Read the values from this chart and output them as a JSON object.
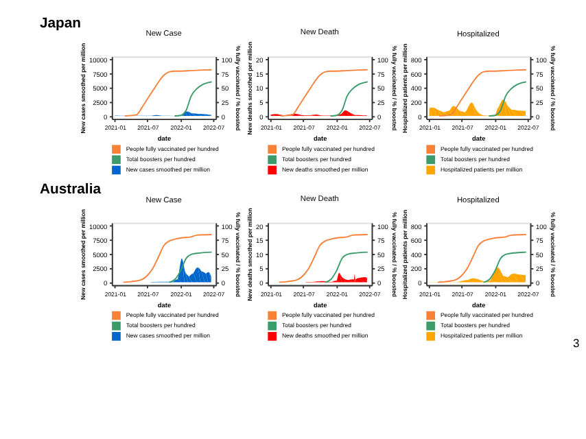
{
  "chart_data": [
    {
      "type": "area",
      "title": "New Case",
      "xlabel": "date",
      "ylabel": "New cases smoothed per million",
      "y2label": "% fully vaccinated / % boosted",
      "annotations": [
        "Japan"
      ],
      "legend": "bottom",
      "xlim": [
        "2020-12-15",
        "2022-07-15"
      ],
      "xticks": [
        "2021-01",
        "2021-07",
        "2022-01",
        "2022-07"
      ],
      "ylim": [
        -500,
        10500
      ],
      "yticks": [
        0,
        2500,
        5000,
        7500,
        10000
      ],
      "y2lim": [
        -5,
        105
      ],
      "y2ticks": [
        0,
        25,
        50,
        75,
        100
      ],
      "series": [
        {
          "name": "People fully vaccinated per hundred",
          "color": "#f8813a",
          "type": "line",
          "axis": "y2",
          "x": [
            "2021-03-01",
            "2021-05-01",
            "2021-06-01",
            "2021-07-01",
            "2021-08-01",
            "2021-09-01",
            "2021-10-01",
            "2021-11-01",
            "2021-12-01",
            "2022-01-01",
            "2022-03-01",
            "2022-05-01",
            "2022-06-20"
          ],
          "values": [
            0,
            2,
            15,
            30,
            45,
            60,
            72,
            78,
            79,
            79,
            80,
            81,
            81.5
          ]
        },
        {
          "name": "Total boosters per hundred",
          "color": "#3a9c6b",
          "type": "line",
          "axis": "y2",
          "x": [
            "2021-12-01",
            "2022-01-01",
            "2022-02-01",
            "2022-03-01",
            "2022-04-01",
            "2022-05-01",
            "2022-06-20"
          ],
          "values": [
            0,
            1,
            10,
            35,
            48,
            55,
            60
          ]
        },
        {
          "name": "New cases smoothed per million",
          "color": "#0066cc",
          "axis": "y",
          "x": [
            "2021-01-01",
            "2021-02-01",
            "2021-04-01",
            "2021-07-15",
            "2021-08-20",
            "2021-10-01",
            "2021-12-01",
            "2022-01-10",
            "2022-01-25",
            "2022-02-10",
            "2022-03-01",
            "2022-04-01",
            "2022-05-01",
            "2022-06-01",
            "2022-06-20"
          ],
          "values": [
            50,
            30,
            30,
            40,
            170,
            20,
            5,
            100,
            700,
            800,
            500,
            400,
            350,
            250,
            200
          ]
        }
      ]
    },
    {
      "type": "area",
      "title": "New Death",
      "xlabel": "date",
      "ylabel": "New deaths smoothed per million",
      "y2label": "% fully vaccinated / % boosted",
      "legend": "bottom",
      "xlim": [
        "2020-12-15",
        "2022-07-15"
      ],
      "xticks": [
        "2021-01",
        "2021-07",
        "2022-01",
        "2022-07"
      ],
      "ylim": [
        -1,
        21
      ],
      "yticks": [
        0,
        5,
        10,
        15,
        20
      ],
      "y2lim": [
        -5,
        105
      ],
      "y2ticks": [
        0,
        25,
        50,
        75,
        100
      ],
      "series": [
        {
          "name": "People fully vaccinated per hundred",
          "color": "#f8813a",
          "type": "line",
          "axis": "y2",
          "x": [
            "2021-03-01",
            "2021-05-01",
            "2021-06-01",
            "2021-07-01",
            "2021-08-01",
            "2021-09-01",
            "2021-10-01",
            "2021-11-01",
            "2021-12-01",
            "2022-01-01",
            "2022-03-01",
            "2022-05-01",
            "2022-06-20"
          ],
          "values": [
            0,
            2,
            15,
            30,
            45,
            60,
            72,
            78,
            79,
            79,
            80,
            81,
            81.5
          ]
        },
        {
          "name": "Total boosters per hundred",
          "color": "#3a9c6b",
          "type": "line",
          "axis": "y2",
          "x": [
            "2021-12-01",
            "2022-01-01",
            "2022-02-01",
            "2022-03-01",
            "2022-04-01",
            "2022-05-01",
            "2022-06-20"
          ],
          "values": [
            0,
            1,
            10,
            35,
            48,
            55,
            60
          ]
        },
        {
          "name": "New deaths smoothed per million",
          "color": "#ff0000",
          "axis": "y",
          "x": [
            "2021-01-01",
            "2021-02-01",
            "2021-03-15",
            "2021-05-15",
            "2021-06-20",
            "2021-08-01",
            "2021-09-10",
            "2021-10-15",
            "2021-11-15",
            "2022-01-01",
            "2022-01-25",
            "2022-02-20",
            "2022-03-15",
            "2022-04-10",
            "2022-05-01",
            "2022-06-20"
          ],
          "values": [
            0.5,
            0.7,
            0.2,
            0.8,
            0.3,
            0.2,
            0.5,
            0.1,
            0.1,
            0.1,
            0.6,
            2.0,
            1.2,
            0.4,
            0.3,
            0.2
          ]
        }
      ]
    },
    {
      "type": "area",
      "title": "Hospitalized",
      "xlabel": "date",
      "ylabel": "Hospitalized patients per million",
      "y2label": "% fully vaccinated / % boosted",
      "legend": "bottom",
      "xlim": [
        "2020-12-15",
        "2022-07-15"
      ],
      "xticks": [
        "2021-01",
        "2021-07",
        "2022-01",
        "2022-07"
      ],
      "ylim": [
        -40,
        840
      ],
      "yticks": [
        0,
        200,
        400,
        600,
        800
      ],
      "y2lim": [
        -5,
        105
      ],
      "y2ticks": [
        0,
        25,
        50,
        75,
        100
      ],
      "series": [
        {
          "name": "People fully vaccinated per hundred",
          "color": "#f8813a",
          "type": "line",
          "axis": "y2",
          "x": [
            "2021-03-01",
            "2021-05-01",
            "2021-06-01",
            "2021-07-01",
            "2021-08-01",
            "2021-09-01",
            "2021-10-01",
            "2021-11-01",
            "2021-12-01",
            "2022-01-01",
            "2022-03-01",
            "2022-05-01",
            "2022-06-20"
          ],
          "values": [
            0,
            2,
            15,
            30,
            45,
            60,
            72,
            78,
            79,
            79,
            80,
            81,
            81.5
          ]
        },
        {
          "name": "Total boosters per hundred",
          "color": "#3a9c6b",
          "type": "line",
          "axis": "y2",
          "x": [
            "2021-12-01",
            "2022-01-01",
            "2022-02-01",
            "2022-03-01",
            "2022-04-01",
            "2022-05-01",
            "2022-06-20"
          ],
          "values": [
            0,
            1,
            10,
            35,
            48,
            55,
            60
          ]
        },
        {
          "name": "Hospitalized patients per million",
          "color": "#ffa500",
          "axis": "y",
          "x": [
            "2021-01-01",
            "2021-01-20",
            "2021-02-15",
            "2021-03-20",
            "2021-04-20",
            "2021-05-15",
            "2021-06-15",
            "2021-07-15",
            "2021-08-25",
            "2021-09-20",
            "2021-10-20",
            "2021-11-20",
            "2022-01-01",
            "2022-01-20",
            "2022-02-15",
            "2022-03-10",
            "2022-04-01",
            "2022-05-01",
            "2022-06-20"
          ],
          "values": [
            110,
            120,
            90,
            50,
            70,
            140,
            80,
            50,
            190,
            80,
            15,
            5,
            15,
            120,
            230,
            150,
            90,
            80,
            70
          ]
        }
      ]
    },
    {
      "type": "area",
      "title": "New Case",
      "xlabel": "date",
      "ylabel": "New cases smoothed per million",
      "y2label": "% fully vaccinated / % boosted",
      "annotations": [
        "Australia"
      ],
      "legend": "bottom",
      "xlim": [
        "2020-12-15",
        "2022-07-15"
      ],
      "xticks": [
        "2021-01",
        "2021-07",
        "2022-01",
        "2022-07"
      ],
      "ylim": [
        -500,
        10500
      ],
      "yticks": [
        0,
        2500,
        5000,
        7500,
        10000
      ],
      "y2lim": [
        -5,
        105
      ],
      "y2ticks": [
        0,
        25,
        50,
        75,
        100
      ],
      "series": [
        {
          "name": "People fully vaccinated per hundred",
          "color": "#f8813a",
          "type": "line",
          "axis": "y2",
          "x": [
            "2021-02-20",
            "2021-04-01",
            "2021-06-01",
            "2021-07-01",
            "2021-08-01",
            "2021-09-01",
            "2021-10-01",
            "2021-11-01",
            "2021-12-01",
            "2022-01-01",
            "2022-03-01",
            "2022-04-01",
            "2022-06-20"
          ],
          "values": [
            0,
            1,
            5,
            12,
            25,
            45,
            65,
            73,
            76,
            78,
            80,
            83,
            84
          ]
        },
        {
          "name": "Total boosters per hundred",
          "color": "#3a9c6b",
          "type": "line",
          "axis": "y2",
          "x": [
            "2021-11-01",
            "2021-12-01",
            "2022-01-01",
            "2022-02-01",
            "2022-03-01",
            "2022-04-01",
            "2022-06-20"
          ],
          "values": [
            0,
            5,
            20,
            42,
            49,
            51,
            53
          ]
        },
        {
          "name": "New cases smoothed per million",
          "color": "#0066cc",
          "axis": "y",
          "x": [
            "2021-07-15",
            "2021-08-15",
            "2021-10-01",
            "2021-11-15",
            "2021-12-15",
            "2022-01-08",
            "2022-01-25",
            "2022-02-15",
            "2022-03-10",
            "2022-04-05",
            "2022-04-25",
            "2022-05-20",
            "2022-06-05",
            "2022-06-20"
          ],
          "values": [
            30,
            50,
            80,
            60,
            500,
            4200,
            2000,
            1000,
            1500,
            2600,
            2000,
            1500,
            1800,
            1000
          ]
        }
      ]
    },
    {
      "type": "area",
      "title": "New Death",
      "xlabel": "date",
      "ylabel": "New deaths smoothed per million",
      "y2label": "% fully vaccinated / % boosted",
      "legend": "bottom",
      "xlim": [
        "2020-12-15",
        "2022-07-15"
      ],
      "xticks": [
        "2021-01",
        "2021-07",
        "2022-01",
        "2022-07"
      ],
      "ylim": [
        -1,
        21
      ],
      "yticks": [
        0,
        5,
        10,
        15,
        20
      ],
      "y2lim": [
        -5,
        105
      ],
      "y2ticks": [
        0,
        25,
        50,
        75,
        100
      ],
      "series": [
        {
          "name": "People fully vaccinated per hundred",
          "color": "#f8813a",
          "type": "line",
          "axis": "y2",
          "x": [
            "2021-02-20",
            "2021-04-01",
            "2021-06-01",
            "2021-07-01",
            "2021-08-01",
            "2021-09-01",
            "2021-10-01",
            "2021-11-01",
            "2021-12-01",
            "2022-01-01",
            "2022-03-01",
            "2022-04-01",
            "2022-06-20"
          ],
          "values": [
            0,
            1,
            5,
            12,
            25,
            45,
            65,
            73,
            76,
            78,
            80,
            83,
            84
          ]
        },
        {
          "name": "Total boosters per hundred",
          "color": "#3a9c6b",
          "type": "line",
          "axis": "y2",
          "x": [
            "2021-11-01",
            "2021-12-01",
            "2022-01-01",
            "2022-02-01",
            "2022-03-01",
            "2022-04-01",
            "2022-06-20"
          ],
          "values": [
            0,
            5,
            20,
            42,
            49,
            51,
            53
          ]
        },
        {
          "name": "New deaths smoothed per million",
          "color": "#ff0000",
          "axis": "y",
          "x": [
            "2021-07-15",
            "2021-08-15",
            "2021-09-15",
            "2021-10-15",
            "2021-12-01",
            "2022-01-01",
            "2022-01-15",
            "2022-02-01",
            "2022-03-01",
            "2022-04-08",
            "2022-04-12",
            "2022-04-16",
            "2022-05-01",
            "2022-06-10",
            "2022-06-20"
          ],
          "values": [
            0.1,
            0.1,
            0.3,
            0.4,
            0.1,
            0.5,
            3.3,
            1.8,
            0.8,
            1.0,
            2.8,
            1.0,
            1.4,
            1.8,
            1.5
          ]
        }
      ]
    },
    {
      "type": "area",
      "title": "Hospitalized",
      "xlabel": "date",
      "ylabel": "Hospitalized patients per million",
      "y2label": "% fully vaccinated / % boosted",
      "annotations": [
        "3"
      ],
      "legend": "bottom",
      "xlim": [
        "2020-12-15",
        "2022-07-15"
      ],
      "xticks": [
        "2021-01",
        "2021-07",
        "2022-01",
        "2022-07"
      ],
      "ylim": [
        -40,
        840
      ],
      "yticks": [
        0,
        200,
        400,
        600,
        800
      ],
      "y2lim": [
        -5,
        105
      ],
      "y2ticks": [
        0,
        25,
        50,
        75,
        100
      ],
      "series": [
        {
          "name": "People fully vaccinated per hundred",
          "color": "#f8813a",
          "type": "line",
          "axis": "y2",
          "x": [
            "2021-02-20",
            "2021-04-01",
            "2021-06-01",
            "2021-07-01",
            "2021-08-01",
            "2021-09-01",
            "2021-10-01",
            "2021-11-01",
            "2021-12-01",
            "2022-01-01",
            "2022-03-01",
            "2022-04-01",
            "2022-06-20"
          ],
          "values": [
            0,
            1,
            5,
            12,
            25,
            45,
            65,
            73,
            76,
            78,
            80,
            83,
            84
          ]
        },
        {
          "name": "Total boosters per hundred",
          "color": "#3a9c6b",
          "type": "line",
          "axis": "y2",
          "x": [
            "2021-11-01",
            "2021-12-01",
            "2022-01-01",
            "2022-02-01",
            "2022-03-01",
            "2022-04-01",
            "2022-06-20"
          ],
          "values": [
            0,
            5,
            20,
            42,
            49,
            51,
            53
          ]
        },
        {
          "name": "Hospitalized patients per million",
          "color": "#ffa500",
          "axis": "y",
          "x": [
            "2021-01-01",
            "2021-06-01",
            "2021-08-01",
            "2021-09-01",
            "2021-10-01",
            "2021-11-01",
            "2021-12-01",
            "2022-01-15",
            "2022-02-15",
            "2022-03-10",
            "2022-04-10",
            "2022-05-10",
            "2022-06-20"
          ],
          "values": [
            2,
            2,
            30,
            55,
            40,
            10,
            20,
            210,
            90,
            70,
            120,
            110,
            100
          ]
        }
      ]
    }
  ]
}
